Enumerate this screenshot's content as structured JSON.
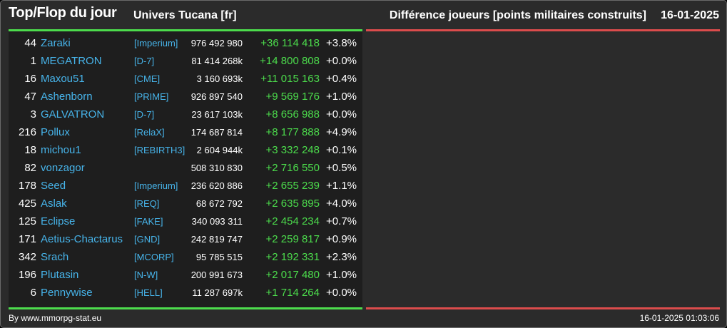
{
  "header": {
    "title": "Top/Flop du jour",
    "universe": "Univers Tucana [fr]",
    "metric": "Différence joueurs [points militaires construits]",
    "date": "16-01-2025"
  },
  "colors": {
    "accent_green": "#4cdc4c",
    "accent_red": "#dc4c4c",
    "link_blue": "#47b4ea",
    "panel_bg": "#1e1e1e",
    "frame_bg": "#2b2b2b"
  },
  "top_rows": [
    {
      "rank": "44",
      "name": "Zaraki",
      "alliance": "[Imperium]",
      "points": "976 492 980",
      "diff": "+36 114 418",
      "pct": "+3.8%"
    },
    {
      "rank": "1",
      "name": "MEGATRON",
      "alliance": "[D-7]",
      "points": "81 414 268k",
      "diff": "+14 800 808",
      "pct": "+0.0%"
    },
    {
      "rank": "16",
      "name": "Maxou51",
      "alliance": "[CME]",
      "points": "3 160 693k",
      "diff": "+11 015 163",
      "pct": "+0.4%"
    },
    {
      "rank": "47",
      "name": "Ashenborn",
      "alliance": "[PRIME]",
      "points": "926 897 540",
      "diff": "+9 569 176",
      "pct": "+1.0%"
    },
    {
      "rank": "3",
      "name": "GALVATRON",
      "alliance": "[D-7]",
      "points": "23 617 103k",
      "diff": "+8 656 988",
      "pct": "+0.0%"
    },
    {
      "rank": "216",
      "name": "Pollux",
      "alliance": "[RelaX]",
      "points": "174 687 814",
      "diff": "+8 177 888",
      "pct": "+4.9%"
    },
    {
      "rank": "18",
      "name": "michou1",
      "alliance": "[REBIRTH3]",
      "points": "2 604 944k",
      "diff": "+3 332 248",
      "pct": "+0.1%"
    },
    {
      "rank": "82",
      "name": "vonzagor",
      "alliance": "",
      "points": "508 310 830",
      "diff": "+2 716 550",
      "pct": "+0.5%"
    },
    {
      "rank": "178",
      "name": "Seed",
      "alliance": "[Imperium]",
      "points": "236 620 886",
      "diff": "+2 655 239",
      "pct": "+1.1%"
    },
    {
      "rank": "425",
      "name": "Aslak",
      "alliance": "[REQ]",
      "points": "68 672 792",
      "diff": "+2 635 895",
      "pct": "+4.0%"
    },
    {
      "rank": "125",
      "name": "Eclipse",
      "alliance": "[FAKE]",
      "points": "340 093 311",
      "diff": "+2 454 234",
      "pct": "+0.7%"
    },
    {
      "rank": "171",
      "name": "Aetius-Chactarus",
      "alliance": "[GND]",
      "points": "242 819 747",
      "diff": "+2 259 817",
      "pct": "+0.9%"
    },
    {
      "rank": "342",
      "name": "Srach",
      "alliance": "[MCORP]",
      "points": "95 785 515",
      "diff": "+2 192 331",
      "pct": "+2.3%"
    },
    {
      "rank": "196",
      "name": "Plutasin",
      "alliance": "[N-W]",
      "points": "200 991 673",
      "diff": "+2 017 480",
      "pct": "+1.0%"
    },
    {
      "rank": "6",
      "name": "Pennywise",
      "alliance": "[HELL]",
      "points": "11 287 697k",
      "diff": "+1 714 264",
      "pct": "+0.0%"
    }
  ],
  "footer": {
    "source": "By www.mmorpg-stat.eu",
    "timestamp": "16-01-2025 01:03:06"
  }
}
